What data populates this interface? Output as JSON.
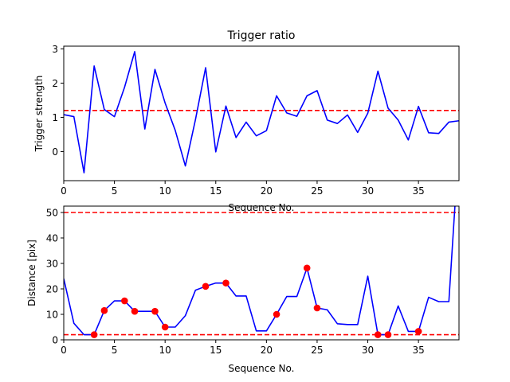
{
  "colors": {
    "line": "#0000ff",
    "threshold": "#ff0000",
    "marker": "#ff0000",
    "axes": "#000000",
    "background": "#ffffff"
  },
  "chart_data": [
    {
      "type": "line",
      "title": "Trigger ratio",
      "xlabel": "Sequence No.",
      "ylabel": "Trigger strength",
      "xlim": [
        0,
        39
      ],
      "ylim": [
        -0.85,
        3.08
      ],
      "xticks": [
        0,
        5,
        10,
        15,
        20,
        25,
        30,
        35
      ],
      "yticks": [
        0,
        1,
        2,
        3
      ],
      "grid": false,
      "series": [
        {
          "x": [
            0,
            1,
            2,
            3,
            4,
            5,
            6,
            7,
            8,
            9,
            10,
            11,
            12,
            13,
            14,
            15,
            16,
            17,
            18,
            19,
            20,
            21,
            22,
            23,
            24,
            25,
            26,
            27,
            28,
            29,
            30,
            31,
            32,
            33,
            34,
            35,
            36,
            37,
            38,
            39
          ],
          "values": [
            1.08,
            1.02,
            -0.62,
            2.5,
            1.23,
            1.02,
            1.88,
            2.92,
            0.66,
            2.4,
            1.42,
            0.62,
            -0.42,
            0.94,
            2.45,
            -0.01,
            1.33,
            0.41,
            0.86,
            0.46,
            0.61,
            1.63,
            1.13,
            1.03,
            1.63,
            1.78,
            0.92,
            0.82,
            1.07,
            0.56,
            1.12,
            2.35,
            1.27,
            0.92,
            0.34,
            1.32,
            0.55,
            0.53,
            0.86,
            0.9
          ]
        }
      ],
      "hlines": [
        1.2
      ]
    },
    {
      "type": "line",
      "title": "",
      "xlabel": "Sequence No.",
      "ylabel": "Distance [pix]",
      "xlim": [
        0,
        39
      ],
      "ylim": [
        0,
        52.5
      ],
      "xticks": [
        0,
        5,
        10,
        15,
        20,
        25,
        30,
        35
      ],
      "yticks": [
        0,
        10,
        20,
        30,
        40,
        50
      ],
      "grid": false,
      "series": [
        {
          "x": [
            0,
            1,
            2,
            3,
            4,
            5,
            6,
            7,
            8,
            9,
            10,
            11,
            12,
            13,
            14,
            15,
            16,
            17,
            18,
            19,
            20,
            21,
            22,
            23,
            24,
            25,
            26,
            27,
            28,
            29,
            30,
            31,
            32,
            33,
            34,
            35,
            36,
            37,
            38,
            38.6
          ],
          "values": [
            24,
            6.5,
            2,
            2,
            11.5,
            15.3,
            15.3,
            11.2,
            11.2,
            11.2,
            5,
            5,
            9.5,
            19.5,
            21,
            22.3,
            22.3,
            17.2,
            17.2,
            3.5,
            3.5,
            10,
            17,
            17,
            28.2,
            12.5,
            11.8,
            6.3,
            6,
            6,
            25,
            2,
            2,
            13.3,
            3.3,
            3.3,
            16.7,
            15,
            15,
            52.5
          ]
        }
      ],
      "markers": {
        "x": [
          3,
          4,
          6,
          7,
          9,
          10,
          14,
          16,
          21,
          24,
          25,
          31,
          32,
          35
        ],
        "values": [
          2,
          11.5,
          15.3,
          11.2,
          11.2,
          5,
          21,
          22.3,
          10,
          28.2,
          12.5,
          2,
          2,
          3.3
        ]
      },
      "hlines": [
        2,
        50
      ]
    }
  ]
}
